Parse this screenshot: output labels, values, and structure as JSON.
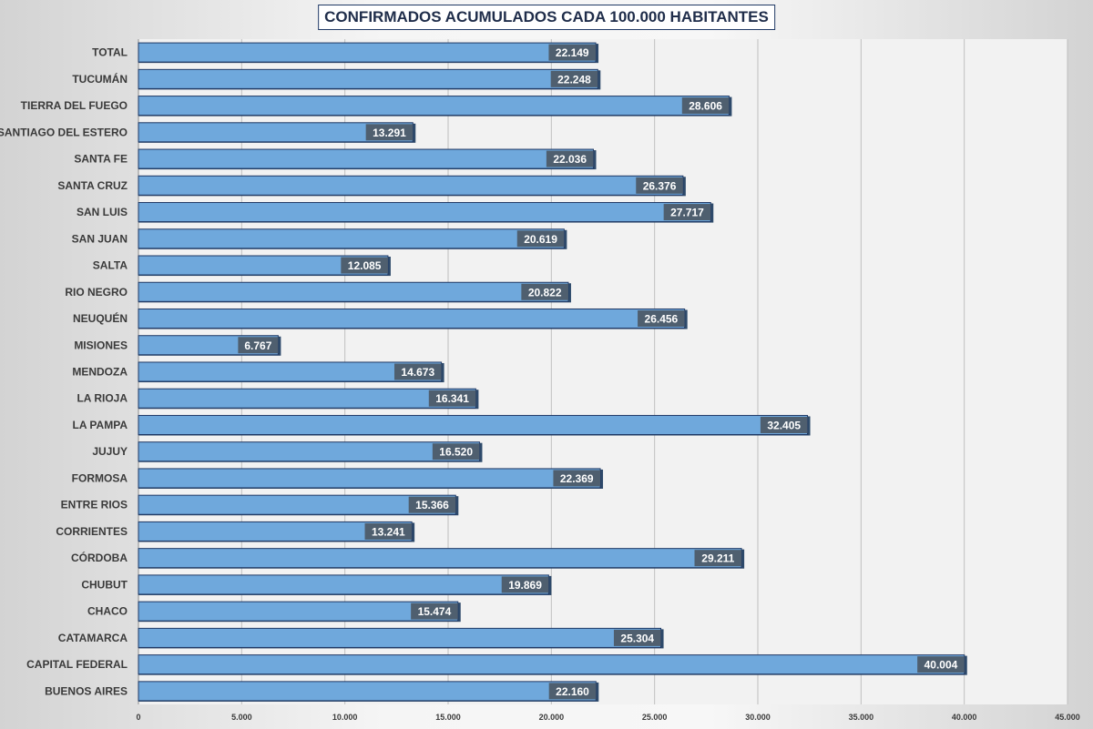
{
  "chart_data": {
    "type": "bar",
    "orientation": "horizontal",
    "title": "CONFIRMADOS ACUMULADOS CADA 100.000 HABITANTES",
    "categories": [
      "TOTAL",
      "TUCUMÁN",
      "TIERRA DEL FUEGO",
      "SANTIAGO DEL ESTERO",
      "SANTA FE",
      "SANTA CRUZ",
      "SAN LUIS",
      "SAN JUAN",
      "SALTA",
      "RIO NEGRO",
      "NEUQUÉN",
      "MISIONES",
      "MENDOZA",
      "LA RIOJA",
      "LA PAMPA",
      "JUJUY",
      "FORMOSA",
      "ENTRE RIOS",
      "CORRIENTES",
      "CÓRDOBA",
      "CHUBUT",
      "CHACO",
      "CATAMARCA",
      "CAPITAL FEDERAL",
      "BUENOS AIRES"
    ],
    "values": [
      22149,
      22248,
      28606,
      13291,
      22036,
      26376,
      27717,
      20619,
      12085,
      20822,
      26456,
      6767,
      14673,
      16341,
      32405,
      16520,
      22369,
      15366,
      13241,
      29211,
      19869,
      15474,
      25304,
      40004,
      22160
    ],
    "value_labels": [
      "22.149",
      "22.248",
      "28.606",
      "13.291",
      "22.036",
      "26.376",
      "27.717",
      "20.619",
      "12.085",
      "20.822",
      "26.456",
      "6.767",
      "14.673",
      "16.341",
      "32.405",
      "16.520",
      "22.369",
      "15.366",
      "13.241",
      "29.211",
      "19.869",
      "15.474",
      "25.304",
      "40.004",
      "22.160"
    ],
    "x_ticks": [
      0,
      5000,
      10000,
      15000,
      20000,
      25000,
      30000,
      35000,
      40000,
      45000
    ],
    "x_tick_labels": [
      "0",
      "5.000",
      "10.000",
      "15.000",
      "20.000",
      "25.000",
      "30.000",
      "35.000",
      "40.000",
      "45.000"
    ],
    "xlim": [
      0,
      45000
    ],
    "grid": true,
    "legend": "none",
    "colors": {
      "bar": "#6fa8dc",
      "bar_border": "#1f3864",
      "label_bg": "#4f5f6f",
      "label_text": "#ffffff",
      "plot_bg": "#f2f2f2",
      "grid": "#bfbfbf"
    }
  }
}
